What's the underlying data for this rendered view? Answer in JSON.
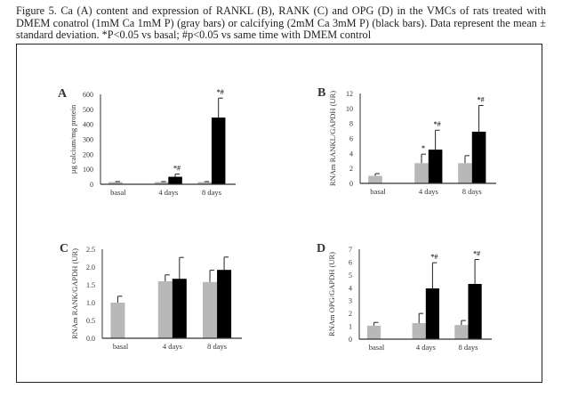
{
  "caption": "Figure 5. Ca (A) content and expression of RANKL (B), RANK (C) and OPG (D) in the VMCs of rats treated with DMEM conatrol (1mM Ca 1mM P) (gray bars) or calcifying (2mM Ca 3mM P) (black bars). Data represent the mean ± standard deviation. *P<0.05 vs basal; #p<0.05 vs same time with DMEM control",
  "colors": {
    "control": "#b8b8b8",
    "calcifying": "#000000",
    "axis": "#333333"
  },
  "chart_data": [
    {
      "panel": "A",
      "type": "bar",
      "categories": [
        "basal",
        "4 days",
        "8 days"
      ],
      "ylabel": "µg calcium/mg protein",
      "ylim": [
        0,
        600
      ],
      "yticks": [
        "0",
        "100",
        "200",
        "300",
        "400",
        "500",
        "600"
      ],
      "series": [
        {
          "name": "DMEM control",
          "values": [
            15,
            15,
            15
          ],
          "errors": [
            3,
            3,
            3
          ],
          "annotations": [
            "",
            "",
            ""
          ]
        },
        {
          "name": "calcifying",
          "values": [
            null,
            50,
            445
          ],
          "errors": [
            null,
            18,
            130
          ],
          "annotations": [
            "",
            "*#",
            "*#"
          ]
        }
      ]
    },
    {
      "panel": "B",
      "type": "bar",
      "categories": [
        "basal",
        "4 days",
        "8 days"
      ],
      "ylabel": "RNAm RANKL/GAPDH (UR)",
      "ylim": [
        0,
        12
      ],
      "yticks": [
        "0",
        "2",
        "4",
        "6",
        "8",
        "10",
        "12"
      ],
      "series": [
        {
          "name": "DMEM control",
          "values": [
            1.0,
            2.7,
            2.7
          ],
          "errors": [
            0.3,
            1.2,
            1.0
          ],
          "annotations": [
            "",
            "*",
            ""
          ]
        },
        {
          "name": "calcifying",
          "values": [
            null,
            4.5,
            6.9
          ],
          "errors": [
            null,
            2.6,
            3.5
          ],
          "annotations": [
            "",
            "*#",
            "*#"
          ]
        }
      ]
    },
    {
      "panel": "C",
      "type": "bar",
      "categories": [
        "basal",
        "4 days",
        "8 days"
      ],
      "ylabel": "RNAm RANK/GAPDH (UR)",
      "ylim": [
        0,
        2.5
      ],
      "yticks": [
        "0.0",
        "0.5",
        "1.0",
        "1.5",
        "2.0",
        "2.5"
      ],
      "series": [
        {
          "name": "DMEM control",
          "values": [
            1.0,
            1.6,
            1.58
          ],
          "errors": [
            0.18,
            0.18,
            0.33
          ],
          "annotations": [
            "",
            "",
            ""
          ]
        },
        {
          "name": "calcifying",
          "values": [
            null,
            1.67,
            1.92
          ],
          "errors": [
            null,
            0.6,
            0.36
          ],
          "annotations": [
            "",
            "",
            ""
          ]
        }
      ]
    },
    {
      "panel": "D",
      "type": "bar",
      "categories": [
        "basal",
        "4 days",
        "8 days"
      ],
      "ylabel": "RNAm OPG/GAPDH (UR)",
      "ylim": [
        0,
        7
      ],
      "yticks": [
        "0",
        "1",
        "2",
        "3",
        "4",
        "5",
        "6",
        "7"
      ],
      "series": [
        {
          "name": "DMEM control",
          "values": [
            1.05,
            1.25,
            1.1
          ],
          "errors": [
            0.25,
            0.75,
            0.35
          ],
          "annotations": [
            "",
            "",
            ""
          ]
        },
        {
          "name": "calcifying",
          "values": [
            null,
            3.95,
            4.3
          ],
          "errors": [
            null,
            2.0,
            1.9
          ],
          "annotations": [
            "",
            "*#",
            "*#"
          ]
        }
      ]
    }
  ]
}
